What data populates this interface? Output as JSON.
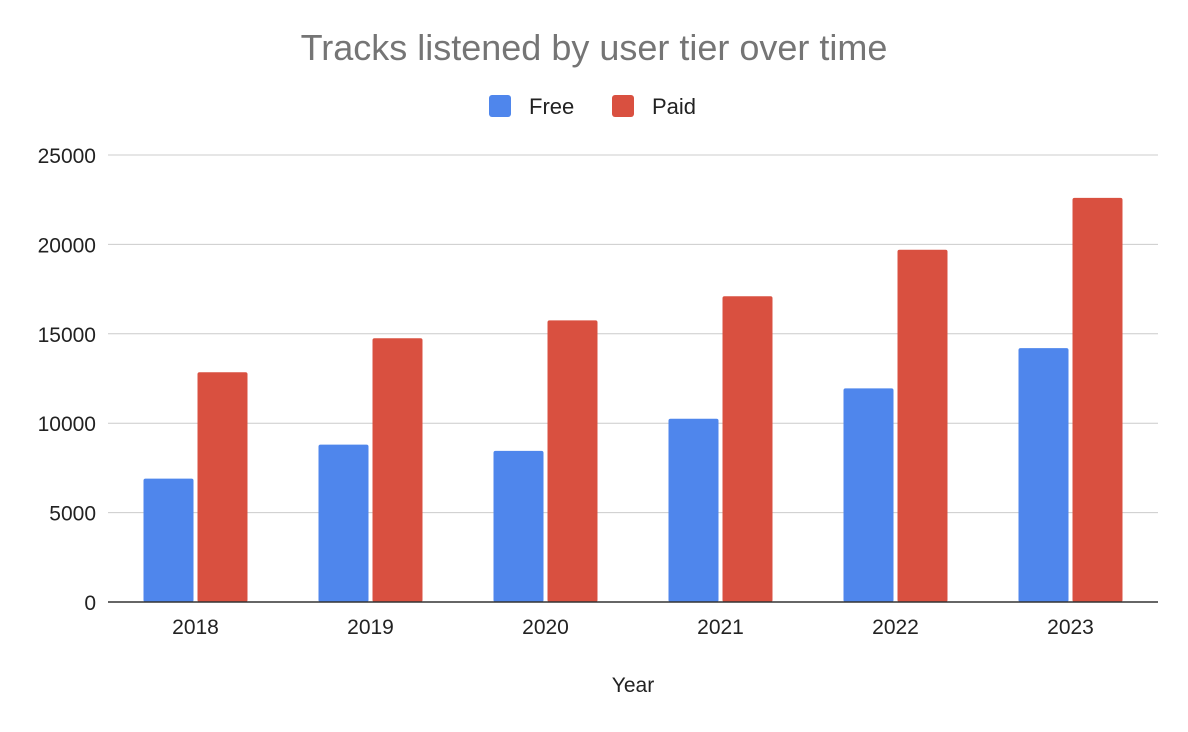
{
  "chart_data": {
    "type": "bar",
    "title": "Tracks listened by user tier over time",
    "xlabel": "Year",
    "ylabel": "",
    "categories": [
      "2018",
      "2019",
      "2020",
      "2021",
      "2022",
      "2023"
    ],
    "series": [
      {
        "name": "Free",
        "color": "#4f86ec",
        "values": [
          6900,
          8800,
          8450,
          10250,
          11950,
          14200
        ]
      },
      {
        "name": "Paid",
        "color": "#d95040",
        "values": [
          12850,
          14750,
          15750,
          17100,
          19700,
          22600
        ]
      }
    ],
    "ylim": [
      0,
      25000
    ],
    "yticks": [
      "0",
      "5000",
      "10000",
      "15000",
      "20000",
      "25000"
    ],
    "grid": true,
    "legend_position": "top-center"
  }
}
